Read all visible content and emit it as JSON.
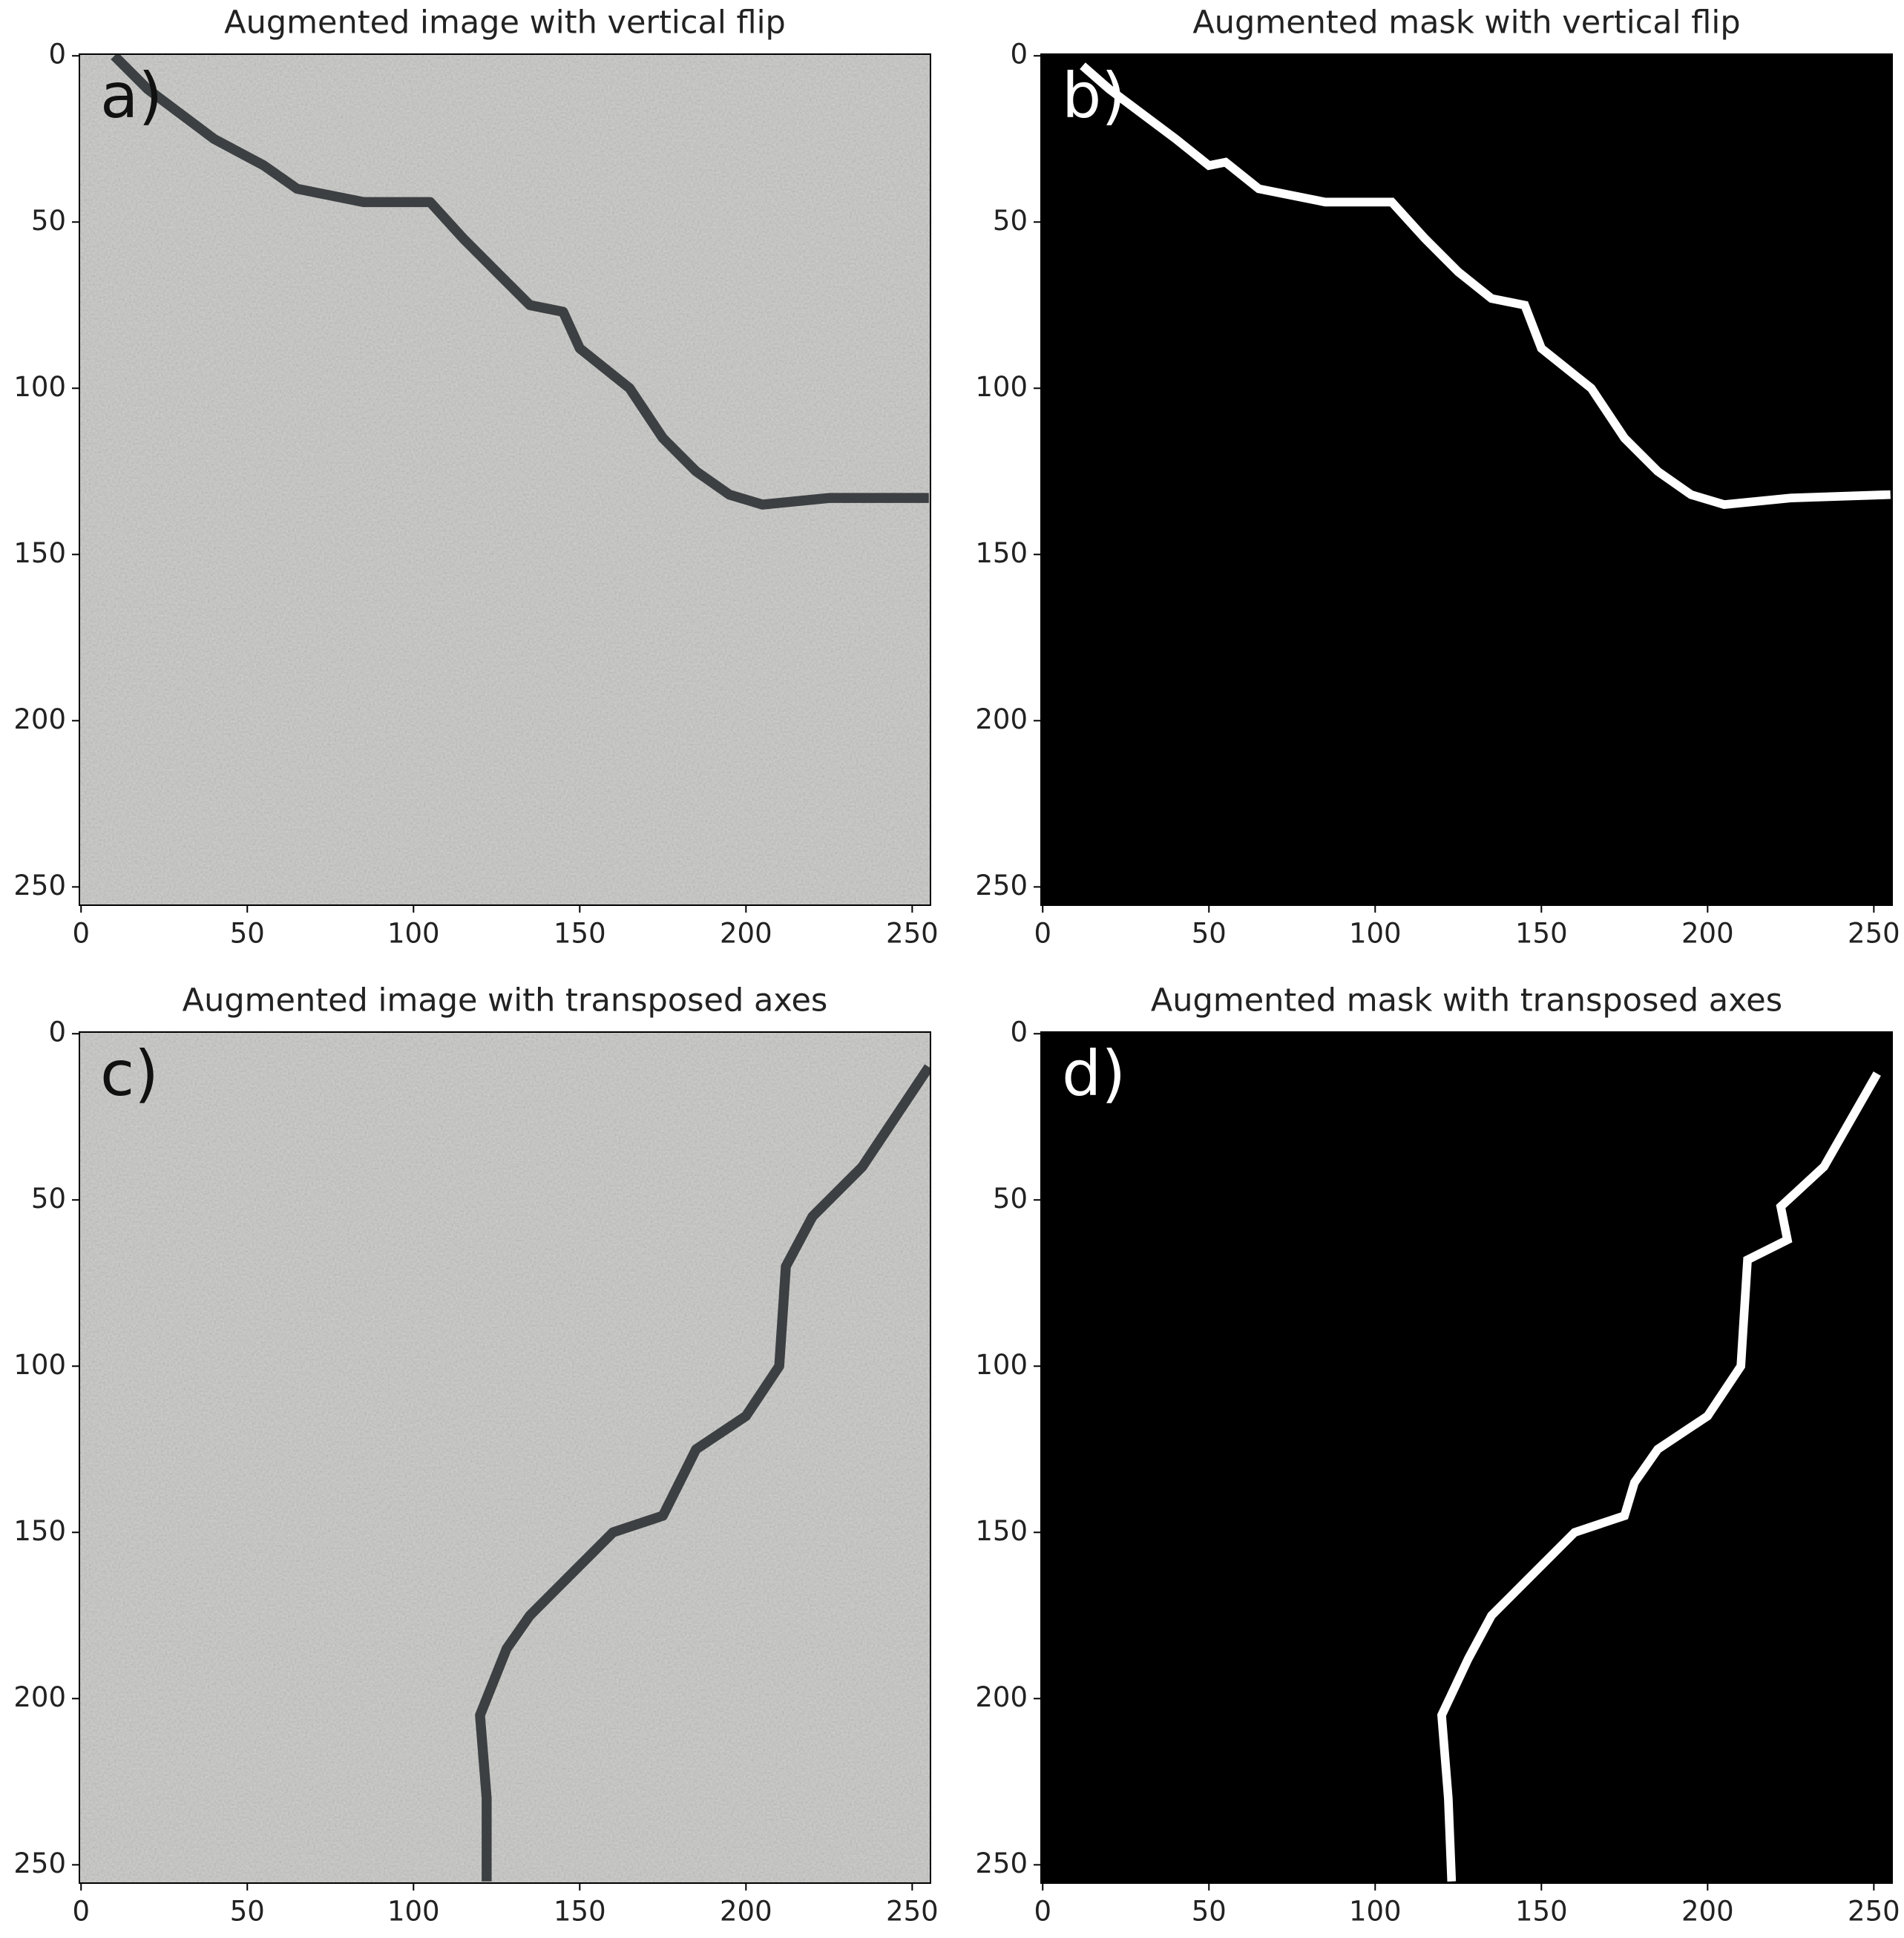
{
  "chart_data": [
    {
      "type": "image",
      "title": "Augmented image with vertical flip",
      "panel_label": "a)",
      "label_color": "#111111",
      "image_color": "#c6c6c4",
      "color": "#3c4042",
      "xlim": [
        -0.5,
        255.5
      ],
      "ylim": [
        255.5,
        -0.5
      ],
      "xticks": [
        0,
        50,
        100,
        150,
        200,
        250
      ],
      "yticks": [
        0,
        50,
        100,
        150,
        200,
        250
      ]
    },
    {
      "type": "image",
      "title": "Augmented mask with vertical flip",
      "panel_label": "b)",
      "label_color": "#ffffff",
      "image_color": "#000000",
      "color": "#ffffff",
      "xlim": [
        -0.5,
        255.5
      ],
      "ylim": [
        255.5,
        -0.5
      ],
      "xticks": [
        0,
        50,
        100,
        150,
        200,
        250
      ],
      "yticks": [
        0,
        50,
        100,
        150,
        200,
        250
      ]
    },
    {
      "type": "image",
      "title": "Augmented image with transposed axes",
      "panel_label": "c)",
      "label_color": "#111111",
      "image_color": "#c6c6c4",
      "color": "#3c4042",
      "xlim": [
        -0.5,
        255.5
      ],
      "ylim": [
        255.5,
        -0.5
      ],
      "xticks": [
        0,
        50,
        100,
        150,
        200,
        250
      ],
      "yticks": [
        0,
        50,
        100,
        150,
        200,
        250
      ]
    },
    {
      "type": "image",
      "title": "Augmented mask with transposed axes",
      "panel_label": "d)",
      "label_color": "#ffffff",
      "image_color": "#000000",
      "color": "#ffffff",
      "xlim": [
        -0.5,
        255.5
      ],
      "ylim": [
        255.5,
        -0.5
      ],
      "xticks": [
        0,
        50,
        100,
        150,
        200,
        250
      ],
      "yticks": [
        0,
        50,
        100,
        150,
        200,
        250
      ]
    }
  ]
}
